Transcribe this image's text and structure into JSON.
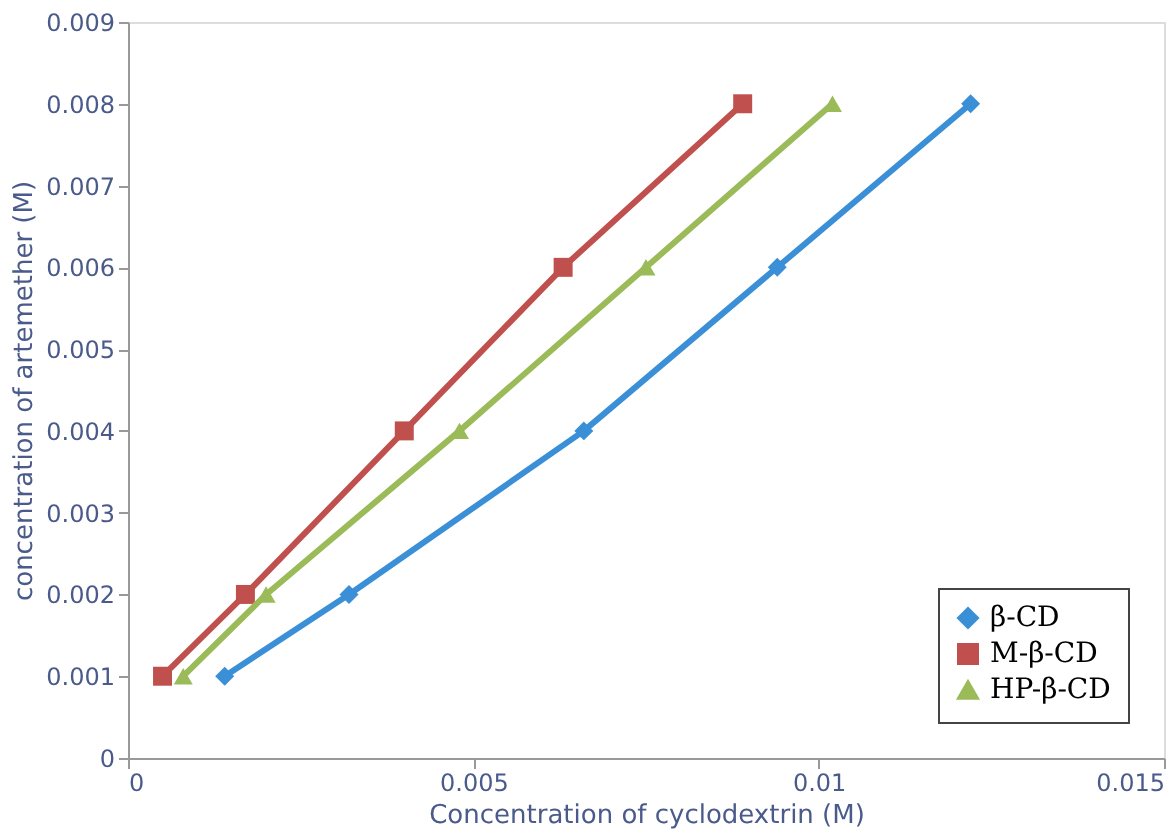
{
  "chart_data": {
    "type": "line",
    "xlabel": "Concentration of cyclodextrin (M)",
    "ylabel": "concentration of artemether (M)",
    "xlim": [
      0,
      0.015
    ],
    "xticks": [
      0,
      0.005,
      0.01,
      0.015
    ],
    "ylim": [
      0,
      0.009
    ],
    "yticks": [
      0,
      0.001,
      0.002,
      0.003,
      0.004,
      0.005,
      0.006,
      0.007,
      0.008,
      0.009
    ],
    "grid": false,
    "legend": "bottom right",
    "series": [
      {
        "name": "β-CD",
        "color": "#3a8fd6",
        "marker": "diamond",
        "x": [
          0.0014,
          0.0032,
          0.0066,
          0.0094,
          0.0122
        ],
        "values": [
          0.001,
          0.002,
          0.004,
          0.006,
          0.008
        ]
      },
      {
        "name": "M-β-CD",
        "color": "#c0504d",
        "marker": "square",
        "x": [
          0.0005,
          0.0017,
          0.004,
          0.0063,
          0.0089
        ],
        "values": [
          0.001,
          0.002,
          0.004,
          0.006,
          0.008
        ]
      },
      {
        "name": "HP-β-CD",
        "color": "#9bbb59",
        "marker": "triangle",
        "x": [
          0.0008,
          0.002,
          0.0048,
          0.0075,
          0.0102
        ],
        "values": [
          0.001,
          0.002,
          0.004,
          0.006,
          0.008
        ]
      }
    ]
  }
}
